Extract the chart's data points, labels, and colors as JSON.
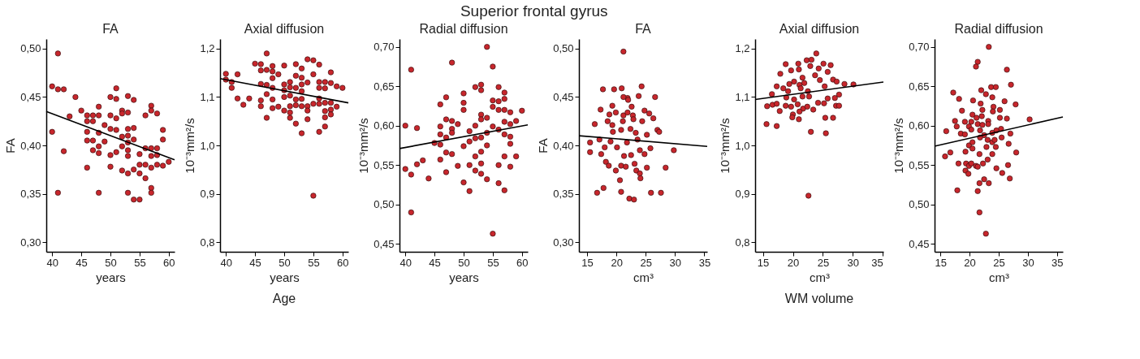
{
  "chart_data": [
    {
      "type": "scatter",
      "title": "FA",
      "xlabel": "years",
      "ylabel": "FA",
      "annotations": [
        "Superior frontal gyrus"
      ],
      "xlim": [
        39,
        61
      ],
      "xticks": [
        40,
        45,
        50,
        55,
        60
      ],
      "ylim": [
        0.29,
        0.51
      ],
      "yticks": [
        {
          "value": 0.3,
          "label": "0,30"
        },
        {
          "value": 0.35,
          "label": "0,35"
        },
        {
          "value": 0.4,
          "label": "0,40"
        },
        {
          "value": 0.45,
          "label": "0,45"
        },
        {
          "value": 0.5,
          "label": "0,50"
        }
      ],
      "series": [
        {
          "marker": "circle",
          "color": "#c8262c",
          "x": [
            40,
            41,
            41,
            42,
            40,
            41,
            42,
            43,
            44,
            45,
            46,
            46,
            46,
            46,
            46,
            47,
            47,
            47,
            47,
            48,
            48,
            48,
            48,
            48,
            48,
            49,
            49,
            50,
            50,
            50,
            50,
            50,
            51,
            51,
            51,
            51,
            51,
            52,
            52,
            52,
            52,
            52,
            53,
            53,
            53,
            53,
            53,
            53,
            53,
            53,
            53,
            54,
            54,
            54,
            54,
            54,
            55,
            55,
            55,
            55,
            56,
            56,
            56,
            56,
            57,
            57,
            57,
            57,
            57,
            57,
            57,
            58,
            58,
            58,
            58,
            59,
            59,
            59,
            60
          ],
          "values": [
            0.461,
            0.495,
            0.458,
            0.458,
            0.414,
            0.351,
            0.394,
            0.43,
            0.45,
            0.436,
            0.431,
            0.425,
            0.414,
            0.405,
            0.377,
            0.431,
            0.425,
            0.405,
            0.395,
            0.44,
            0.431,
            0.413,
            0.399,
            0.392,
            0.351,
            0.421,
            0.404,
            0.45,
            0.431,
            0.417,
            0.39,
            0.378,
            0.459,
            0.448,
            0.428,
            0.416,
            0.393,
            0.436,
            0.433,
            0.409,
            0.399,
            0.374,
            0.451,
            0.434,
            0.417,
            0.41,
            0.403,
            0.395,
            0.389,
            0.371,
            0.351,
            0.447,
            0.418,
            0.406,
            0.375,
            0.344,
            0.391,
            0.38,
            0.371,
            0.344,
            0.431,
            0.397,
            0.38,
            0.366,
            0.441,
            0.436,
            0.397,
            0.389,
            0.377,
            0.356,
            0.351,
            0.433,
            0.397,
            0.39,
            0.38,
            0.416,
            0.406,
            0.379,
            0.383
          ]
        },
        {
          "type": "line",
          "color": "#000000",
          "x": [
            39,
            61
          ],
          "values": [
            0.435,
            0.385
          ]
        }
      ]
    },
    {
      "type": "scatter",
      "title": "Axial diffusion",
      "xlabel": "years",
      "ylabel": "10⁻³mm²/s",
      "annotations": [
        "Age"
      ],
      "xlim": [
        39,
        61
      ],
      "xticks": [
        40,
        45,
        50,
        55,
        60
      ],
      "ylim": [
        0.78,
        1.22
      ],
      "yticks": [
        {
          "value": 0.8,
          "label": "0,8"
        },
        {
          "value": 0.9,
          "label": "0,9"
        },
        {
          "value": 1.0,
          "label": "1,0"
        },
        {
          "value": 1.1,
          "label": "1,1"
        },
        {
          "value": 1.2,
          "label": "1,2"
        }
      ],
      "series": [
        {
          "marker": "circle",
          "color": "#c8262c",
          "x": [
            40,
            40,
            41,
            41,
            42,
            42,
            43,
            44,
            45,
            46,
            46,
            46,
            46,
            46,
            47,
            47,
            47,
            47,
            47,
            48,
            48,
            48,
            48,
            48,
            48,
            49,
            49,
            50,
            50,
            50,
            50,
            50,
            51,
            51,
            51,
            51,
            51,
            51,
            52,
            52,
            52,
            52,
            52,
            52,
            53,
            53,
            53,
            53,
            53,
            53,
            53,
            54,
            54,
            54,
            54,
            54,
            55,
            55,
            55,
            55,
            56,
            56,
            56,
            56,
            56,
            56,
            57,
            57,
            57,
            57,
            57,
            57,
            58,
            58,
            58,
            58,
            58,
            59,
            59,
            60
          ],
          "values": [
            1.148,
            1.136,
            1.131,
            1.119,
            1.147,
            1.097,
            1.084,
            1.097,
            1.169,
            1.168,
            1.155,
            1.127,
            1.093,
            1.081,
            1.19,
            1.156,
            1.125,
            1.106,
            1.057,
            1.164,
            1.153,
            1.139,
            1.119,
            1.095,
            1.077,
            1.147,
            1.08,
            1.165,
            1.126,
            1.114,
            1.1,
            1.072,
            1.131,
            1.12,
            1.103,
            1.081,
            1.068,
            1.057,
            1.168,
            1.144,
            1.119,
            1.095,
            1.083,
            1.045,
            1.159,
            1.14,
            1.126,
            1.112,
            1.096,
            1.081,
            1.025,
            1.178,
            1.13,
            1.081,
            1.072,
            1.054,
            1.176,
            1.147,
            1.086,
            0.896,
            1.167,
            1.131,
            1.119,
            1.097,
            1.086,
            1.028,
            1.131,
            1.118,
            1.088,
            1.071,
            1.058,
            1.039,
            1.151,
            1.129,
            1.088,
            1.074,
            1.064,
            1.122,
            1.08,
            1.119
          ]
        },
        {
          "type": "line",
          "color": "#000000",
          "x": [
            39,
            61
          ],
          "values": [
            1.138,
            1.088
          ]
        }
      ]
    },
    {
      "type": "scatter",
      "title": "Radial diffusion",
      "xlabel": "years",
      "ylabel": "10⁻³mm²/s",
      "xlim": [
        39,
        61
      ],
      "xticks": [
        40,
        45,
        50,
        55,
        60
      ],
      "ylim": [
        0.44,
        0.71
      ],
      "yticks": [
        {
          "value": 0.45,
          "label": "0,45"
        },
        {
          "value": 0.5,
          "label": "0,50"
        },
        {
          "value": 0.55,
          "label": "0,55"
        },
        {
          "value": 0.6,
          "label": "0,60"
        },
        {
          "value": 0.65,
          "label": "0,65"
        },
        {
          "value": 0.7,
          "label": "0,70"
        }
      ],
      "series": [
        {
          "marker": "circle",
          "color": "#c8262c",
          "x": [
            40,
            40,
            41,
            41,
            41,
            42,
            42,
            43,
            44,
            45,
            46,
            46,
            46,
            46,
            46,
            47,
            47,
            47,
            47,
            47,
            48,
            48,
            48,
            48,
            48,
            49,
            49,
            50,
            50,
            50,
            50,
            50,
            51,
            51,
            51,
            51,
            52,
            52,
            52,
            52,
            52,
            53,
            53,
            53,
            53,
            53,
            53,
            53,
            53,
            54,
            54,
            54,
            54,
            54,
            55,
            55,
            55,
            55,
            55,
            56,
            56,
            56,
            56,
            56,
            56,
            57,
            57,
            57,
            57,
            57,
            57,
            57,
            58,
            58,
            58,
            58,
            58,
            59,
            59,
            60
          ],
          "values": [
            0.6,
            0.545,
            0.671,
            0.538,
            0.49,
            0.597,
            0.551,
            0.556,
            0.533,
            0.578,
            0.627,
            0.599,
            0.589,
            0.576,
            0.557,
            0.636,
            0.608,
            0.585,
            0.566,
            0.541,
            0.68,
            0.606,
            0.596,
            0.591,
            0.564,
            0.602,
            0.549,
            0.641,
            0.629,
            0.62,
            0.574,
            0.528,
            0.593,
            0.58,
            0.55,
            0.517,
            0.649,
            0.6,
            0.584,
            0.561,
            0.543,
            0.652,
            0.645,
            0.614,
            0.608,
            0.585,
            0.567,
            0.552,
            0.539,
            0.7,
            0.61,
            0.591,
            0.575,
            0.532,
            0.675,
            0.632,
            0.624,
            0.599,
            0.463,
            0.649,
            0.631,
            0.62,
            0.595,
            0.55,
            0.527,
            0.642,
            0.634,
            0.62,
            0.605,
            0.589,
            0.561,
            0.518,
            0.617,
            0.602,
            0.586,
            0.577,
            0.548,
            0.606,
            0.561,
            0.619
          ]
        },
        {
          "type": "line",
          "color": "#000000",
          "x": [
            39,
            61
          ],
          "values": [
            0.571,
            0.601
          ]
        }
      ]
    },
    {
      "type": "scatter",
      "title": "FA",
      "xlabel": "cm³",
      "ylabel": "FA",
      "xlim": [
        13.6,
        35.5
      ],
      "xticks": [
        15,
        20,
        25,
        30,
        35
      ],
      "ylim": [
        0.29,
        0.51
      ],
      "yticks": [
        {
          "value": 0.3,
          "label": "0,30"
        },
        {
          "value": 0.35,
          "label": "0,35"
        },
        {
          "value": 0.4,
          "label": "0,40"
        },
        {
          "value": 0.45,
          "label": "0,45"
        },
        {
          "value": 0.5,
          "label": "0,50"
        }
      ],
      "series": [
        {
          "marker": "circle",
          "color": "#c8262c",
          "x": [
            21.2,
            24.3,
            17.7,
            19.6,
            20.9,
            21.9,
            21.2,
            22.0,
            23.8,
            26.6,
            19.3,
            22.6,
            17.3,
            24.8,
            18.8,
            19.9,
            21.2,
            21.9,
            22.8,
            25.6,
            26.3,
            16.3,
            18.5,
            19.3,
            21.1,
            22.9,
            24.4,
            19.4,
            20.8,
            22.4,
            23.3,
            27.0,
            27.3,
            19.0,
            17.1,
            15.5,
            20.1,
            21.8,
            23.6,
            25.2,
            15.5,
            17.4,
            18.0,
            21.3,
            22.5,
            24.0,
            24.8,
            25.8,
            29.8,
            18.2,
            18.7,
            19.9,
            20.8,
            21.6,
            23.1,
            23.4,
            24.0,
            25.2,
            28.4,
            20.6,
            24.1,
            16.7,
            17.8,
            20.8,
            25.9,
            27.6,
            22.2,
            23.0
          ],
          "values": [
            0.497,
            0.461,
            0.458,
            0.458,
            0.459,
            0.449,
            0.45,
            0.447,
            0.451,
            0.45,
            0.441,
            0.44,
            0.437,
            0.436,
            0.432,
            0.434,
            0.431,
            0.434,
            0.431,
            0.433,
            0.428,
            0.422,
            0.425,
            0.421,
            0.425,
            0.427,
            0.425,
            0.414,
            0.416,
            0.417,
            0.413,
            0.416,
            0.414,
            0.404,
            0.406,
            0.403,
            0.398,
            0.403,
            0.406,
            0.411,
            0.393,
            0.391,
            0.398,
            0.389,
            0.39,
            0.395,
            0.391,
            0.397,
            0.395,
            0.383,
            0.379,
            0.374,
            0.379,
            0.378,
            0.381,
            0.374,
            0.371,
            0.377,
            0.377,
            0.364,
            0.366,
            0.351,
            0.356,
            0.352,
            0.351,
            0.351,
            0.345,
            0.344
          ]
        },
        {
          "type": "line",
          "color": "#000000",
          "x": [
            13.6,
            35.5
          ],
          "values": [
            0.41,
            0.399
          ]
        }
      ]
    },
    {
      "type": "scatter",
      "title": "Axial diffusion",
      "xlabel": "cm³",
      "ylabel": "10⁻³mm²/s",
      "annotations": [
        "WM volume"
      ],
      "xlim": [
        13.7,
        35.1
      ],
      "xticks": [
        15,
        20,
        25,
        30,
        35
      ],
      "ylim": [
        0.78,
        1.22
      ],
      "yticks": [
        {
          "value": 0.8,
          "label": "0,8"
        },
        {
          "value": 0.9,
          "label": "0,9"
        },
        {
          "value": 1.0,
          "label": "1,0"
        },
        {
          "value": 1.1,
          "label": "1,1"
        },
        {
          "value": 1.2,
          "label": "1,2"
        }
      ],
      "series": [
        {
          "marker": "circle",
          "color": "#c8262c",
          "x": [
            23.9,
            20.9,
            18.8,
            22.3,
            23.1,
            25.1,
            26.3,
            17.9,
            19.7,
            21.0,
            21.6,
            22.9,
            24.3,
            23.7,
            25.8,
            19.4,
            20.2,
            21.1,
            21.9,
            17.3,
            16.5,
            18.4,
            19.2,
            21.3,
            22.5,
            24.5,
            25.3,
            26.7,
            27.3,
            28.6,
            30.1,
            27.7,
            18.9,
            20.2,
            21.6,
            22.7,
            25.8,
            27.0,
            15.7,
            16.6,
            17.3,
            18.8,
            19.7,
            20.8,
            21.7,
            22.4,
            23.4,
            24.2,
            25.2,
            27.2,
            27.7,
            17.8,
            20.0,
            19.9,
            21.1,
            21.0,
            15.6,
            17.3,
            25.4,
            26.7,
            23.0,
            25.5,
            22.6
          ],
          "values": [
            1.19,
            1.169,
            1.168,
            1.176,
            1.177,
            1.169,
            1.166,
            1.148,
            1.155,
            1.157,
            1.14,
            1.164,
            1.159,
            1.145,
            1.152,
            1.127,
            1.132,
            1.125,
            1.129,
            1.122,
            1.106,
            1.118,
            1.112,
            1.118,
            1.112,
            1.135,
            1.122,
            1.136,
            1.132,
            1.127,
            1.126,
            1.105,
            1.099,
            1.095,
            1.101,
            1.101,
            1.097,
            1.098,
            1.081,
            1.084,
            1.086,
            1.082,
            1.08,
            1.085,
            1.076,
            1.08,
            1.074,
            1.088,
            1.087,
            1.082,
            1.082,
            1.071,
            1.064,
            1.058,
            1.07,
            1.054,
            1.044,
            1.04,
            1.057,
            1.057,
            1.028,
            1.025,
            0.896
          ]
        },
        {
          "type": "line",
          "color": "#000000",
          "x": [
            13.7,
            35.1
          ],
          "values": [
            1.095,
            1.131
          ]
        }
      ]
    },
    {
      "type": "scatter",
      "title": "Radial diffusion",
      "xlabel": "cm³",
      "ylabel": "10⁻³mm²/s",
      "xlim": [
        14,
        36
      ],
      "xticks": [
        15,
        20,
        25,
        30,
        35
      ],
      "ylim": [
        0.44,
        0.71
      ],
      "yticks": [
        {
          "value": 0.45,
          "label": "0,45"
        },
        {
          "value": 0.5,
          "label": "0,50"
        },
        {
          "value": 0.55,
          "label": "0,55"
        },
        {
          "value": 0.6,
          "label": "0,60"
        },
        {
          "value": 0.65,
          "label": "0,65"
        },
        {
          "value": 0.7,
          "label": "0,70"
        }
      ],
      "series": [
        {
          "marker": "circle",
          "color": "#c8262c",
          "x": [
            23.3,
            21.4,
            21.1,
            26.4,
            17.2,
            18.2,
            20.6,
            22.0,
            22.8,
            23.7,
            24.5,
            27.1,
            23.9,
            26.0,
            27.9,
            18.7,
            21.9,
            22.2,
            24.1,
            24.0,
            25.2,
            17.5,
            20.5,
            21.2,
            22.1,
            23.2,
            25.2,
            26.4,
            30.3,
            16.0,
            17.8,
            19.2,
            20.3,
            19.9,
            21.4,
            22.2,
            23.2,
            25.4,
            24.6,
            18.5,
            19.2,
            20.3,
            21.8,
            22.5,
            23.9,
            27.0,
            15.8,
            16.7,
            19.9,
            20.5,
            21.8,
            23.1,
            23.9,
            24.3,
            25.5,
            26.7,
            28.0,
            19.3,
            20.5,
            21.7,
            22.9,
            23.9,
            24.5,
            18.1,
            19.4,
            19.9,
            20.3,
            21.1,
            22.3,
            23.1,
            19.3,
            19.8,
            21.4,
            24.6,
            25.6,
            26.6,
            26.9,
            21.7,
            22.5,
            23.3,
            17.9,
            21.4,
            21.7,
            22.8
          ],
          "values": [
            0.7,
            0.681,
            0.675,
            0.671,
            0.642,
            0.634,
            0.632,
            0.645,
            0.64,
            0.649,
            0.649,
            0.652,
            0.636,
            0.631,
            0.627,
            0.619,
            0.628,
            0.62,
            0.624,
            0.618,
            0.62,
            0.606,
            0.614,
            0.61,
            0.612,
            0.606,
            0.61,
            0.609,
            0.608,
            0.593,
            0.599,
            0.605,
            0.605,
            0.599,
            0.602,
            0.601,
            0.602,
            0.596,
            0.594,
            0.59,
            0.589,
            0.595,
            0.594,
            0.588,
            0.591,
            0.59,
            0.561,
            0.566,
            0.575,
            0.579,
            0.585,
            0.582,
            0.579,
            0.582,
            0.585,
            0.577,
            0.566,
            0.567,
            0.571,
            0.564,
            0.573,
            0.564,
            0.573,
            0.552,
            0.552,
            0.549,
            0.552,
            0.549,
            0.552,
            0.557,
            0.543,
            0.539,
            0.548,
            0.546,
            0.54,
            0.55,
            0.533,
            0.527,
            0.532,
            0.527,
            0.518,
            0.517,
            0.49,
            0.463
          ]
        },
        {
          "type": "line",
          "color": "#000000",
          "x": [
            14,
            36
          ],
          "values": [
            0.574,
            0.611
          ]
        }
      ]
    }
  ]
}
